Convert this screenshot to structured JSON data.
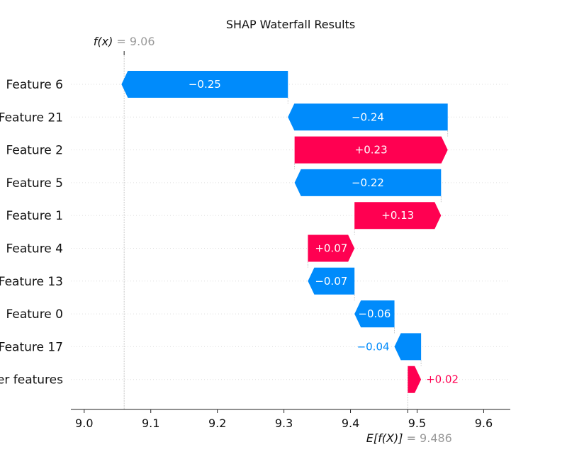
{
  "chart_data": {
    "type": "bar",
    "title": "SHAP Waterfall Results",
    "xlabel": "",
    "ylabel": "",
    "xlim": [
      8.98,
      9.64
    ],
    "xticks": [
      9.0,
      9.1,
      9.2,
      9.3,
      9.4,
      9.5,
      9.6
    ],
    "xtick_labels": [
      "9.0",
      "9.1",
      "9.2",
      "9.3",
      "9.4",
      "9.5",
      "9.6"
    ],
    "categories": [
      "Feature 6",
      "Feature 21",
      "Feature 2",
      "Feature 5",
      "Feature 1",
      "Feature 4",
      "Feature 13",
      "Feature 0",
      "Feature 17",
      "er features"
    ],
    "values": [
      -0.25,
      -0.24,
      0.23,
      -0.22,
      0.13,
      0.07,
      -0.07,
      -0.06,
      -0.04,
      0.02
    ],
    "value_labels": [
      "−0.25",
      "−0.24",
      "+0.23",
      "−0.22",
      "+0.13",
      "+0.07",
      "−0.07",
      "−0.06",
      "−0.04",
      "+0.02"
    ],
    "base_value": 9.486,
    "prediction": 9.06,
    "fx_label": "f(x)",
    "fx_value_text": "= 9.06",
    "efx_label": "E[f(X)]",
    "efx_value_text": "= 9.486",
    "grid": false,
    "colors": {
      "positive": "#ff0051",
      "negative": "#008bfb",
      "text": "#111111",
      "muted": "#999999",
      "gridline": "#cccccc"
    }
  }
}
